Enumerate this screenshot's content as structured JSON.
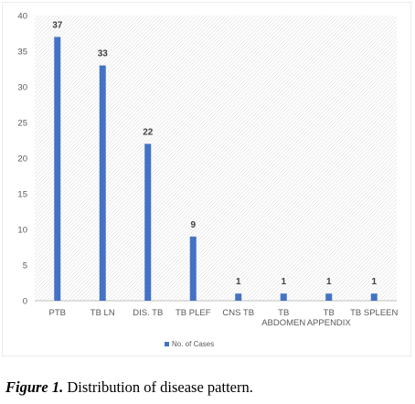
{
  "chart_data": {
    "type": "bar",
    "categories": [
      "PTB",
      "TB LN",
      "DIS. TB",
      "TB PLEF",
      "CNS TB",
      "TB ABDOMEN",
      "TB APPENDIX",
      "TB SPLEEN"
    ],
    "category_lines": [
      [
        "PTB"
      ],
      [
        "TB LN"
      ],
      [
        "DIS. TB"
      ],
      [
        "TB PLEF"
      ],
      [
        "CNS TB"
      ],
      [
        "TB",
        "ABDOMEN"
      ],
      [
        "TB",
        "APPENDIX"
      ],
      [
        "TB SPLEEN"
      ]
    ],
    "series": [
      {
        "name": "No. of Cases",
        "values": [
          37,
          33,
          22,
          9,
          1,
          1,
          1,
          1
        ],
        "color": "#4472C4"
      }
    ],
    "data_labels": [
      "37",
      "33",
      "22",
      "9",
      "1",
      "1",
      "1",
      "1"
    ],
    "title": "",
    "xlabel": "",
    "ylabel": "",
    "ylim": [
      0,
      40
    ],
    "yticks": [
      0,
      5,
      10,
      15,
      20,
      25,
      30,
      35,
      40
    ],
    "ytick_labels": [
      "0",
      "5",
      "10",
      "15",
      "20",
      "25",
      "30",
      "35",
      "40"
    ],
    "grid": "hatched plot background, no gridlines",
    "legend": "bottom"
  },
  "caption": {
    "figure_label": "Figure 1.",
    "text": " Distribution of disease pattern."
  }
}
